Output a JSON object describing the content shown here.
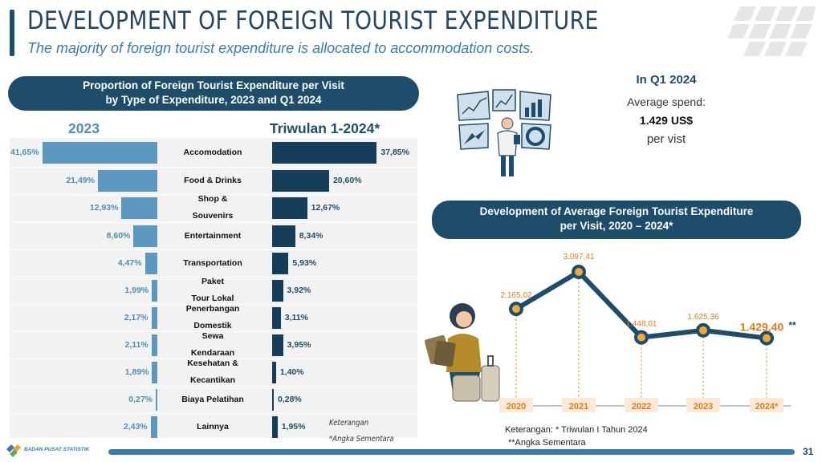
{
  "header": {
    "title": "DEVELOPMENT OF FOREIGN TOURIST EXPENDITURE",
    "subtitle": "The majority of foreign tourist expenditure is allocated to accommodation costs."
  },
  "left_panel": {
    "title_line1": "Proportion of Foreign Tourist Expenditure per Visit",
    "title_line2": "by Type of Expenditure, 2023 and Q1 2024",
    "col_2023": "2023",
    "col_2024": "Triwulan 1-2024*",
    "note_line1": "Keterangan",
    "note_line2": "*Angka Sementara"
  },
  "right_panel": {
    "q1_title": "In Q1 2024",
    "avg_label": "Average spend:",
    "avg_value": "1.429 US$",
    "per_visit": "per vist",
    "chart_title_line1": "Development of Average Foreign Tourist Expenditure",
    "chart_title_line2": "per Visit, 2020 – 2024*",
    "note_line1": "Keterangan: * Triwulan I Tahun 2024",
    "note_line2": "**Angka Sementara"
  },
  "footer": {
    "org": "BADAN PUSAT STATISTIK",
    "page": "31"
  },
  "colors": {
    "navy": "#1e4d6b",
    "light_blue": "#5b97bf",
    "dark_bar": "#163e5a",
    "orange_label": "#e07b1a",
    "line": "#1e4d6b"
  },
  "chart_data": [
    {
      "type": "bar",
      "title": "Proportion of Foreign Tourist Expenditure per Visit by Type of Expenditure, 2023 and Q1 2024",
      "categories": [
        [
          "Accomodation"
        ],
        [
          "Food & Drinks"
        ],
        [
          "Shop &",
          "Souvenirs"
        ],
        [
          "Entertainment"
        ],
        [
          "Transportation"
        ],
        [
          "Paket",
          "Tour Lokal"
        ],
        [
          "Penerbangan",
          "Domestik"
        ],
        [
          "Sewa",
          "Kendaraan"
        ],
        [
          "Kesehatan &",
          "Kecantikan"
        ],
        [
          "Biaya Pelatihan"
        ],
        [
          "Lainnya"
        ]
      ],
      "series": [
        {
          "name": "2023",
          "values": [
            41.65,
            21.49,
            12.93,
            8.6,
            4.47,
            1.99,
            2.17,
            2.11,
            1.89,
            0.27,
            2.43
          ],
          "labels": [
            "41,65%",
            "21,49%",
            "12,93%",
            "8,60%",
            "4,47%",
            "1,99%",
            "2,17%",
            "2,11%",
            "1,89%",
            "0,27%",
            "2,43%"
          ]
        },
        {
          "name": "Triwulan 1-2024*",
          "values": [
            37.85,
            20.6,
            12.67,
            8.34,
            5.93,
            3.92,
            3.11,
            3.95,
            1.4,
            0.28,
            1.95
          ],
          "labels": [
            "37,85%",
            "20,60%",
            "12,67%",
            "8,34%",
            "5,93%",
            "3,92%",
            "3,11%",
            "3,95%",
            "1,40%",
            "0,28%",
            "1,95%"
          ]
        }
      ],
      "xlim": [
        0,
        45
      ]
    },
    {
      "type": "line",
      "title": "Development of Average Foreign Tourist Expenditure per Visit, 2020 – 2024*",
      "x": [
        "2020",
        "2021",
        "2022",
        "2023",
        "2024*"
      ],
      "series": [
        {
          "values": [
            2165.02,
            3097.41,
            1448.01,
            1625.36,
            1429.4
          ],
          "labels": [
            "2.165,02",
            "3.097,41",
            "1.448,01",
            "1.625,36",
            "1.429,40"
          ]
        }
      ],
      "last_label_suffix": "**"
    }
  ]
}
